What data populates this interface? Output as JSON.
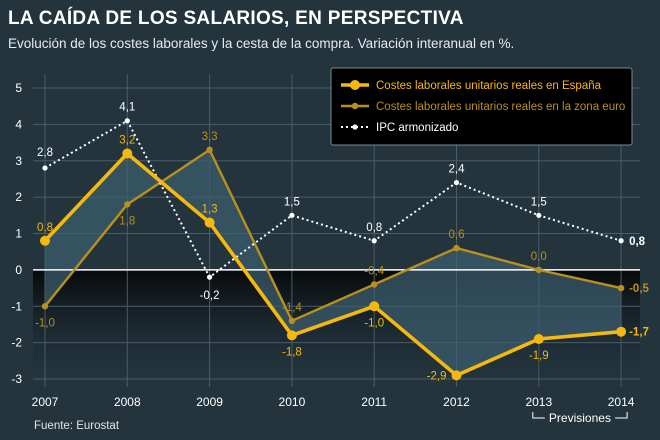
{
  "title": "LA CAÍDA DE LOS SALARIOS, EN PERSPECTIVA",
  "subtitle": "Evolución de los costes laborales y la cesta de la compra. Variación interanual en %.",
  "source": "Fuente: Eurostat",
  "forecast_label": "Previsiones",
  "colors": {
    "background": "#23343d",
    "spain": "#f5b80f",
    "euro": "#b8901e",
    "ipc": "#ffffff",
    "band_fill": "#3d6070"
  },
  "chart_data": {
    "type": "line",
    "x": [
      "2007",
      "2008",
      "2009",
      "2010",
      "2011",
      "2012",
      "2013",
      "2014"
    ],
    "ylim": [
      -3,
      5
    ],
    "yticks": [
      "5",
      "4",
      "3",
      "2",
      "1",
      "0",
      "-1",
      "-2",
      "-3"
    ],
    "grid": true,
    "legend_position": "top-right",
    "series": [
      {
        "name": "Costes laborales unitarios reales en España",
        "values": [
          0.8,
          3.2,
          1.3,
          -1.8,
          -1.0,
          -2.9,
          -1.9,
          -1.7
        ],
        "labels": [
          "0,8",
          "3,2",
          "1,3",
          "-1,8",
          "-1,0",
          "-2,9",
          "-1,9",
          "-1,7"
        ]
      },
      {
        "name": "Costes laborales unitarios reales en la zona euro",
        "values": [
          -1.0,
          1.8,
          3.3,
          -1.4,
          -0.4,
          0.6,
          0.0,
          -0.5
        ],
        "labels": [
          "-1,0",
          "1,8",
          "3,3",
          "-1,4",
          "-0,4",
          "0,6",
          "0,0",
          "-0,5"
        ]
      },
      {
        "name": "IPC armonizado",
        "values": [
          2.8,
          4.1,
          -0.2,
          1.5,
          0.8,
          2.4,
          1.5,
          0.8
        ],
        "labels": [
          "2,8",
          "4,1",
          "-0,2",
          "1,5",
          "0,8",
          "2,4",
          "1,5",
          "0,8"
        ]
      }
    ]
  }
}
